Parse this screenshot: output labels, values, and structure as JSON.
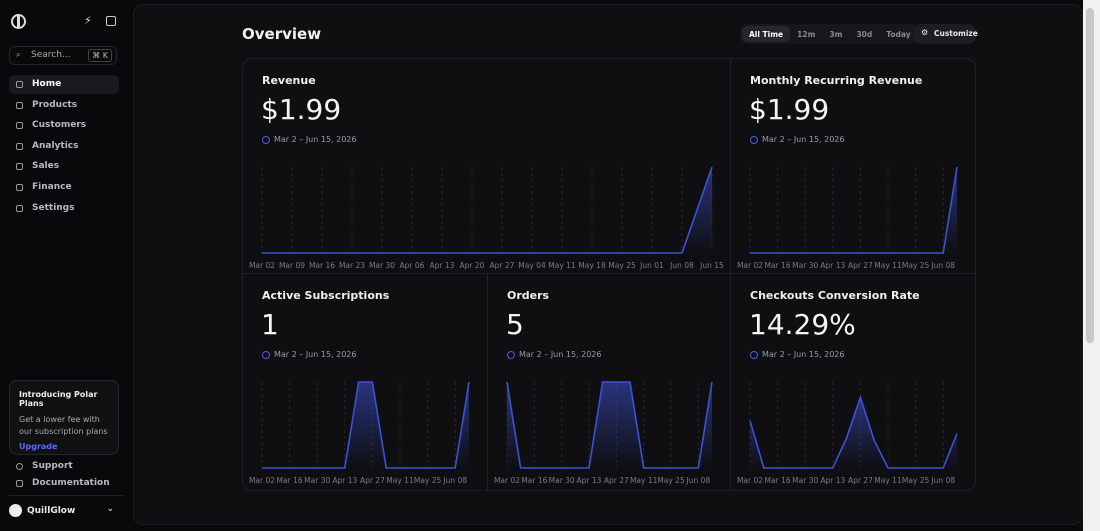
{
  "sidebar": {
    "search": "Search...",
    "shortcut": "⌘ K",
    "nav": [
      "Home",
      "Products",
      "Customers",
      "Analytics",
      "Sales",
      "Finance",
      "Settings"
    ],
    "promo": {
      "title": "Introducing Polar Plans",
      "text": "Get a lower fee with our subscription plans",
      "link": "Upgrade"
    },
    "footer": [
      "Support",
      "Documentation"
    ],
    "org": "QuillGlow"
  },
  "header": {
    "title": "Overview",
    "ranges": [
      "All Time",
      "12m",
      "3m",
      "30d",
      "Today"
    ],
    "customize": "Customize"
  },
  "cards": [
    {
      "title": "Revenue",
      "value": "$1.99",
      "period": "Mar 2 – Jun 15, 2026",
      "chart_data": {
        "type": "line",
        "color": "#3d52d5",
        "categories": [
          "Mar 02",
          "Mar 09",
          "Mar 16",
          "Mar 23",
          "Mar 30",
          "Apr 06",
          "Apr 13",
          "Apr 20",
          "Apr 27",
          "May 04",
          "May 11",
          "May 18",
          "May 25",
          "Jun 01",
          "Jun 08",
          "Jun 15"
        ],
        "values": [
          0,
          0,
          0,
          0,
          0,
          0,
          0,
          0,
          0,
          0,
          0,
          0,
          0,
          0,
          0,
          1.99
        ],
        "ylim": [
          0,
          1.99
        ]
      }
    },
    {
      "title": "Monthly Recurring Revenue",
      "value": "$1.99",
      "period": "Mar 2 – Jun 15, 2026",
      "chart_data": {
        "type": "line",
        "color": "#3d52d5",
        "categories": [
          "Mar 02",
          null,
          "Mar 16",
          null,
          "Mar 30",
          null,
          "Apr 13",
          null,
          "Apr 27",
          null,
          "May 11",
          null,
          "May 25",
          null,
          "Jun 08",
          null
        ],
        "values": [
          0,
          0,
          0,
          0,
          0,
          0,
          0,
          0,
          0,
          0,
          0,
          0,
          0,
          0,
          0,
          1.99
        ],
        "ylim": [
          0,
          1.99
        ]
      }
    },
    {
      "title": "Active Subscriptions",
      "value": "1",
      "period": "Mar 2 – Jun 15, 2026",
      "chart_data": {
        "type": "line",
        "color": "#3d52d5",
        "categories": [
          "Mar 02",
          null,
          "Mar 16",
          null,
          "Mar 30",
          null,
          "Apr 13",
          null,
          "Apr 27",
          null,
          "May 11",
          null,
          "May 25",
          null,
          "Jun 08",
          null
        ],
        "values": [
          0,
          0,
          0,
          0,
          0,
          0,
          0,
          1,
          1,
          0,
          0,
          0,
          0,
          0,
          0,
          1
        ],
        "ylim": [
          0,
          1
        ]
      }
    },
    {
      "title": "Orders",
      "value": "5",
      "period": "Mar 2 – Jun 15, 2026",
      "chart_data": {
        "type": "line",
        "color": "#3d52d5",
        "categories": [
          "Mar 02",
          null,
          "Mar 16",
          null,
          "Mar 30",
          null,
          "Apr 13",
          null,
          "Apr 27",
          null,
          "May 11",
          null,
          "May 25",
          null,
          "Jun 08",
          null
        ],
        "values": [
          1,
          0,
          0,
          0,
          0,
          0,
          0,
          1,
          1,
          1,
          0,
          0,
          0,
          0,
          0,
          1
        ],
        "ylim": [
          0,
          1
        ]
      }
    },
    {
      "title": "Checkouts Conversion Rate",
      "value": "14.29%",
      "period": "Mar 2 – Jun 15, 2026",
      "chart_data": {
        "type": "line",
        "color": "#3d52d5",
        "categories": [
          "Mar 02",
          null,
          "Mar 16",
          null,
          "Mar 30",
          null,
          "Apr 13",
          null,
          "Apr 27",
          null,
          "May 11",
          null,
          "May 25",
          null,
          "Jun 08",
          null
        ],
        "values": [
          55,
          0,
          0,
          0,
          0,
          0,
          0,
          35,
          82,
          32,
          0,
          0,
          0,
          0,
          0,
          40
        ],
        "ylim": [
          0,
          100
        ]
      }
    }
  ]
}
